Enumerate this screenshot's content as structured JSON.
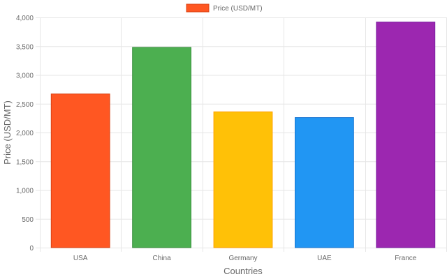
{
  "chart_data": {
    "type": "bar",
    "categories": [
      "USA",
      "China",
      "Germany",
      "UAE",
      "France"
    ],
    "series": [
      {
        "name": "Price (USD/MT)",
        "values": [
          2670,
          3480,
          2360,
          2260,
          3920
        ]
      }
    ],
    "xlabel": "Countries",
    "ylabel": "Price (USD/MT)",
    "ylim": [
      0,
      4000
    ],
    "yticks": [
      "0",
      "500",
      "1,000",
      "1,500",
      "2,000",
      "2,500",
      "3,000",
      "3,500",
      "4,000"
    ],
    "grid": true,
    "legend_position": "top-center",
    "colors": {
      "fills": [
        "#FF5722",
        "#4CAF50",
        "#FFC107",
        "#2196F3",
        "#9C27B0"
      ],
      "borders": [
        "#D84315",
        "#388E3C",
        "#FFA000",
        "#1976D2",
        "#7B1FA2"
      ],
      "legend_fill": "#FF5722",
      "legend_border": "#D84315"
    }
  }
}
